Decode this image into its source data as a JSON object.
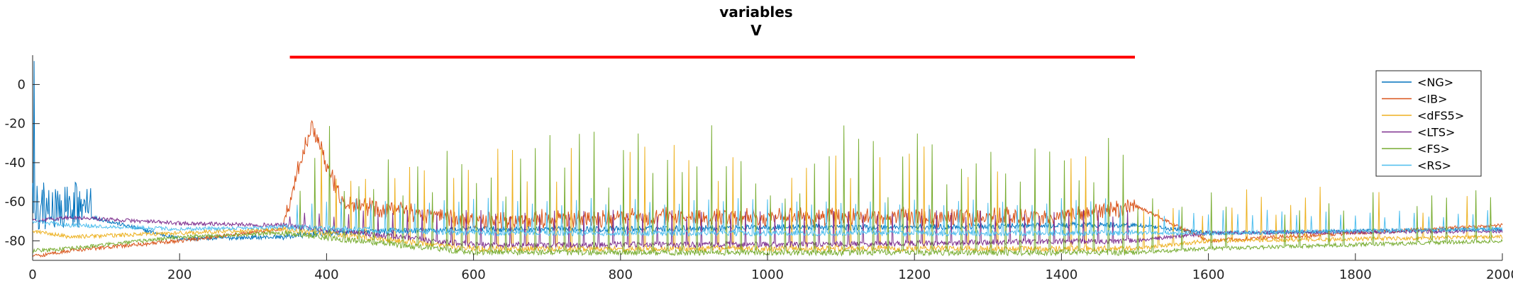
{
  "chart_data": {
    "type": "line",
    "title": "variables",
    "subtitle": "V",
    "xlabel": "",
    "ylabel": "",
    "xlim": [
      0,
      2000
    ],
    "ylim": [
      -90,
      15
    ],
    "xticks": [
      0,
      200,
      400,
      600,
      800,
      1000,
      1200,
      1400,
      1600,
      1800,
      2000
    ],
    "yticks": [
      0,
      -20,
      -40,
      -60,
      -80
    ],
    "grid": false,
    "legend_position": "top-right",
    "stimulus_bar": {
      "x": [
        350,
        1500
      ],
      "y": 14,
      "color": "#ff0000"
    },
    "series": [
      {
        "name": "<NG>",
        "color": "#0072BD",
        "baseline": -78,
        "late": -77,
        "x": [
          0,
          50,
          200,
          340,
          400,
          600,
          800,
          1000,
          1200,
          1400,
          1500,
          1600,
          1800,
          2000
        ],
        "y": [
          -60,
          -65,
          -79,
          -78,
          -76,
          -74,
          -74,
          -73,
          -73,
          -72,
          -72,
          -76,
          -75,
          -74
        ]
      },
      {
        "name": "<IB>",
        "color": "#D95319",
        "baseline": -86,
        "late": -80,
        "x": [
          0,
          50,
          200,
          340,
          360,
          380,
          420,
          600,
          800,
          1000,
          1200,
          1400,
          1500,
          1600,
          1800,
          2000
        ],
        "y": [
          -88,
          -85,
          -80,
          -74,
          -45,
          -20,
          -60,
          -70,
          -68,
          -68,
          -68,
          -68,
          -62,
          -80,
          -76,
          -72
        ]
      },
      {
        "name": "<dFS5>",
        "color": "#EDB120",
        "baseline": -80,
        "late": -80,
        "x": [
          0,
          50,
          200,
          340,
          600,
          1000,
          1500,
          1600,
          2000
        ],
        "y": [
          -75,
          -78,
          -76,
          -74,
          -84,
          -84,
          -84,
          -80,
          -78
        ]
      },
      {
        "name": "<LTS>",
        "color": "#7E2F8E",
        "baseline": -72,
        "late": -76,
        "x": [
          0,
          50,
          200,
          340,
          600,
          1000,
          1500,
          1600,
          2000
        ],
        "y": [
          -70,
          -68,
          -71,
          -72,
          -82,
          -82,
          -80,
          -76,
          -75
        ]
      },
      {
        "name": "<FS>",
        "color": "#77AC30",
        "baseline": -84,
        "late": -82,
        "x": [
          0,
          50,
          200,
          340,
          600,
          1000,
          1500,
          1600,
          2000
        ],
        "y": [
          -85,
          -84,
          -78,
          -76,
          -86,
          -86,
          -86,
          -84,
          -80
        ]
      },
      {
        "name": "<RS>",
        "color": "#4DBEEE",
        "baseline": -74,
        "late": -76,
        "x": [
          0,
          50,
          200,
          340,
          600,
          1000,
          1500,
          1600,
          2000
        ],
        "y": [
          -70,
          -72,
          -74,
          -73,
          -76,
          -76,
          -76,
          -76,
          -74
        ]
      }
    ]
  }
}
